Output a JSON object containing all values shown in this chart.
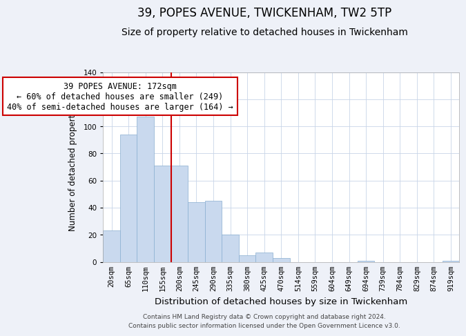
{
  "title": "39, POPES AVENUE, TWICKENHAM, TW2 5TP",
  "subtitle": "Size of property relative to detached houses in Twickenham",
  "xlabel": "Distribution of detached houses by size in Twickenham",
  "ylabel": "Number of detached properties",
  "bar_labels": [
    "20sqm",
    "65sqm",
    "110sqm",
    "155sqm",
    "200sqm",
    "245sqm",
    "290sqm",
    "335sqm",
    "380sqm",
    "425sqm",
    "470sqm",
    "514sqm",
    "559sqm",
    "604sqm",
    "649sqm",
    "694sqm",
    "739sqm",
    "784sqm",
    "829sqm",
    "874sqm",
    "919sqm"
  ],
  "bar_values": [
    23,
    94,
    107,
    71,
    71,
    44,
    45,
    20,
    5,
    7,
    3,
    0,
    0,
    0,
    0,
    1,
    0,
    0,
    0,
    0,
    1
  ],
  "bar_color": "#c9d9ee",
  "bar_edge_color": "#89aed0",
  "vline_x": 3.5,
  "vline_color": "#cc0000",
  "ylim": [
    0,
    140
  ],
  "yticks": [
    0,
    20,
    40,
    60,
    80,
    100,
    120,
    140
  ],
  "annotation_title": "39 POPES AVENUE: 172sqm",
  "annotation_line1": "← 60% of detached houses are smaller (249)",
  "annotation_line2": "40% of semi-detached houses are larger (164) →",
  "footer_line1": "Contains HM Land Registry data © Crown copyright and database right 2024.",
  "footer_line2": "Contains public sector information licensed under the Open Government Licence v3.0.",
  "bg_color": "#eef1f8",
  "plot_bg_color": "#ffffff",
  "title_fontsize": 12,
  "subtitle_fontsize": 10,
  "xlabel_fontsize": 9.5,
  "ylabel_fontsize": 8.5,
  "tick_fontsize": 7.5,
  "annotation_box_color": "#ffffff",
  "annotation_box_edge": "#cc0000",
  "annotation_fontsize": 8.5,
  "grid_color": "#c8d4e8"
}
